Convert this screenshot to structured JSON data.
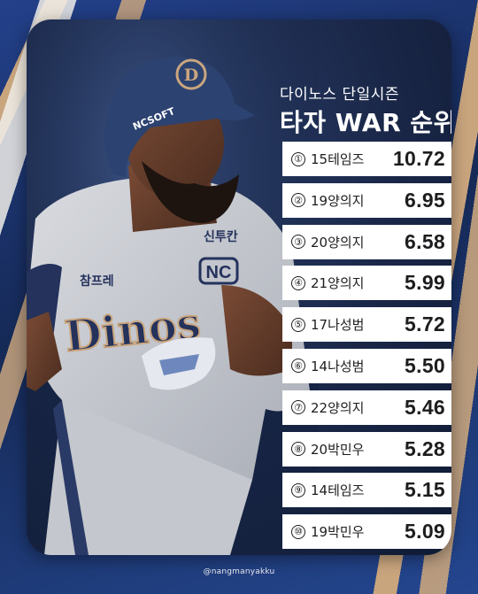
{
  "header": {
    "subtitle": "다이노스 단일시즌",
    "title": "타자 WAR 순위"
  },
  "rankings": [
    {
      "rank": "①",
      "player": "15테임즈",
      "value": "10.72"
    },
    {
      "rank": "②",
      "player": "19양의지",
      "value": "6.95"
    },
    {
      "rank": "③",
      "player": "20양의지",
      "value": "6.58"
    },
    {
      "rank": "④",
      "player": "21양의지",
      "value": "5.99"
    },
    {
      "rank": "⑤",
      "player": "17나성범",
      "value": "5.72"
    },
    {
      "rank": "⑥",
      "player": "14나성범",
      "value": "5.50"
    },
    {
      "rank": "⑦",
      "player": "22양의지",
      "value": "5.46"
    },
    {
      "rank": "⑧",
      "player": "20박민우",
      "value": "5.28"
    },
    {
      "rank": "⑨",
      "player": "14테임즈",
      "value": "5.15"
    },
    {
      "rank": "⑩",
      "player": "19박민우",
      "value": "5.09"
    }
  ],
  "photo": {
    "helmet_logo": "D",
    "helmet_text": "NCSOFT",
    "jersey_script": "Dinos",
    "jersey_badge": "NC",
    "sponsor_left": "참프레",
    "sponsor_right": "신투칸"
  },
  "watermark": "@nangmanyakku",
  "colors": {
    "navy": "#1c2f5e",
    "gold": "#c9a57e",
    "row_bg": "#ffffff",
    "text_dark": "#1d1d1f"
  }
}
